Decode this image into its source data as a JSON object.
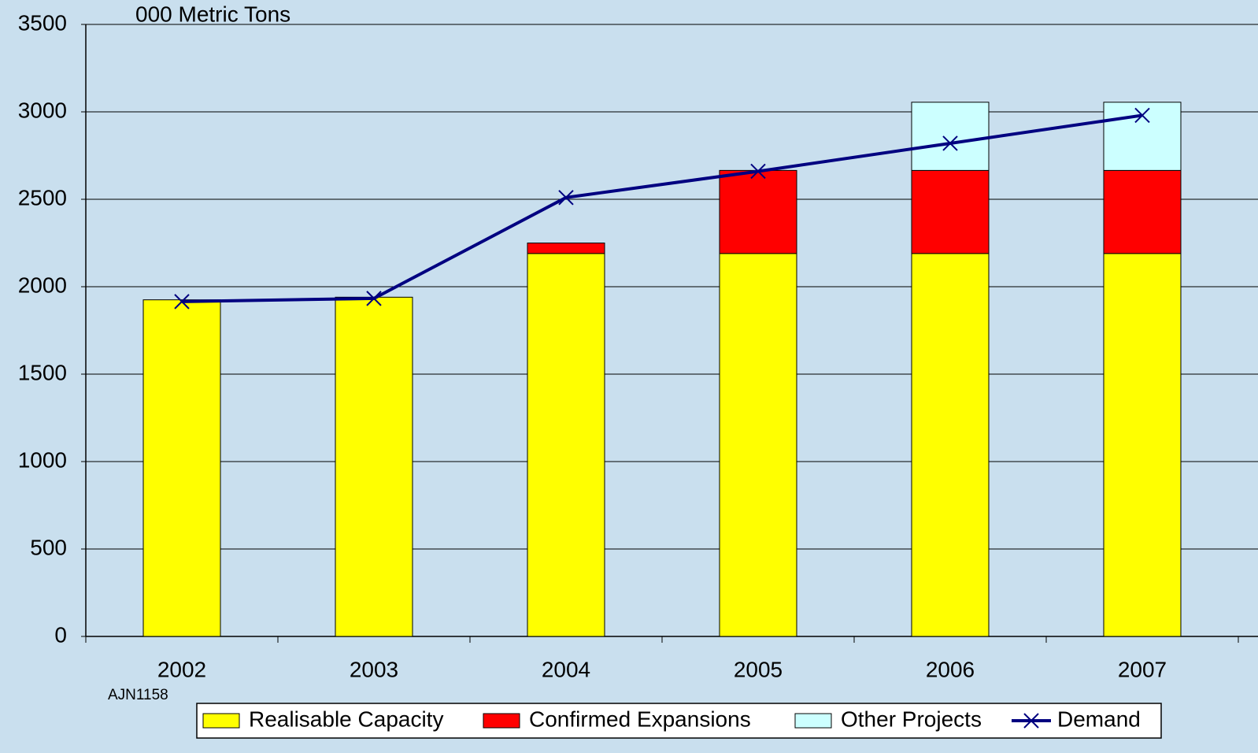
{
  "chart_data": {
    "type": "bar",
    "stacked": true,
    "y_label": "000 Metric Tons",
    "annotation": "AJN1158",
    "categories": [
      "2002",
      "2003",
      "2004",
      "2005",
      "2006",
      "2007"
    ],
    "series": [
      {
        "name": "Realisable Capacity",
        "color": "#ffff00",
        "values": [
          1925,
          1940,
          2190,
          2190,
          2190,
          2190
        ]
      },
      {
        "name": "Confirmed Expansions",
        "color": "#ff0000",
        "values": [
          0,
          0,
          60,
          475,
          475,
          475
        ]
      },
      {
        "name": "Other Projects",
        "color": "#ccffff",
        "values": [
          0,
          0,
          0,
          0,
          390,
          390
        ]
      },
      {
        "name": "Demand",
        "type": "line",
        "color": "#000080",
        "values": [
          1915,
          1933,
          2510,
          2660,
          2820,
          2980
        ]
      }
    ],
    "ylim": [
      0,
      3500
    ],
    "yticks": [
      0,
      500,
      1000,
      1500,
      2000,
      2500,
      3000,
      3500
    ],
    "grid": true
  }
}
